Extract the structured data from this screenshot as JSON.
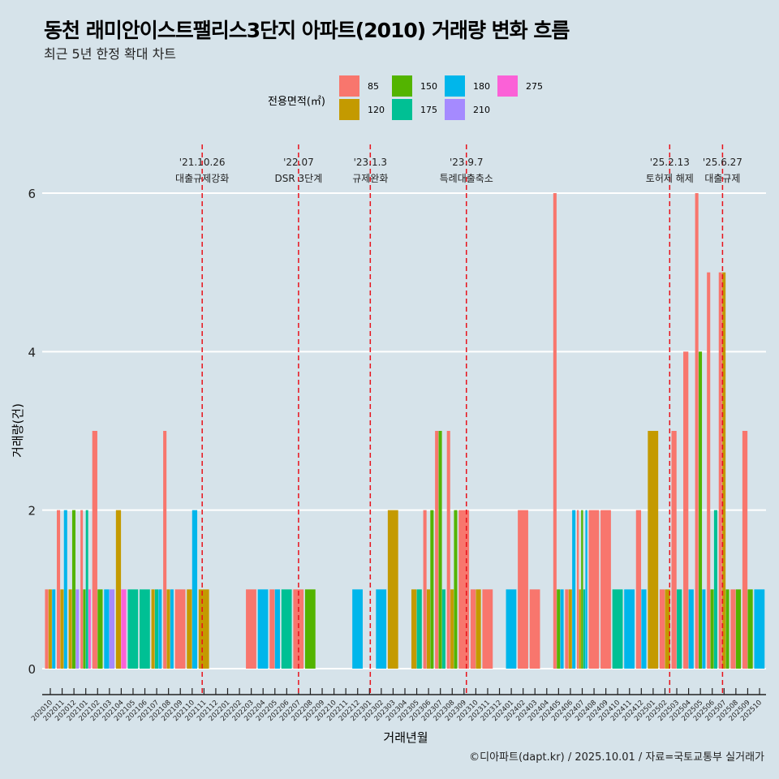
{
  "chart_data": {
    "type": "bar",
    "title": "동천 래미안이스트팰리스3단지 아파트(2010) 거래량 변화 흐름",
    "subtitle": "최근 5년 한정 확대 차트",
    "xlabel": "거래년월",
    "ylabel": "거래량(건)",
    "ylim": [
      0,
      6.3
    ],
    "yticks": [
      0,
      2,
      4,
      6
    ],
    "grid": true,
    "legend": {
      "title": "전용면적(㎡)",
      "position": "top",
      "entries": [
        {
          "label": "85",
          "color": "#F8766D"
        },
        {
          "label": "120",
          "color": "#C49A00"
        },
        {
          "label": "150",
          "color": "#53B400"
        },
        {
          "label": "175",
          "color": "#00C094"
        },
        {
          "label": "180",
          "color": "#00B6EB"
        },
        {
          "label": "210",
          "color": "#A58AFF"
        },
        {
          "label": "275",
          "color": "#FB61D7"
        }
      ]
    },
    "categories": [
      "202010",
      "202011",
      "202012",
      "202101",
      "202102",
      "202103",
      "202104",
      "202105",
      "202106",
      "202107",
      "202108",
      "202109",
      "202110",
      "202111",
      "202112",
      "202201",
      "202202",
      "202203",
      "202204",
      "202205",
      "202206",
      "202207",
      "202208",
      "202209",
      "202210",
      "202211",
      "202212",
      "202301",
      "202302",
      "202303",
      "202304",
      "202305",
      "202306",
      "202307",
      "202308",
      "202309",
      "202310",
      "202311",
      "202312",
      "202401",
      "202402",
      "202403",
      "202404",
      "202405",
      "202406",
      "202407",
      "202408",
      "202409",
      "202410",
      "202411",
      "202412",
      "202501",
      "202502",
      "202503",
      "202504",
      "202505",
      "202506",
      "202507",
      "202508",
      "202509",
      "202510"
    ],
    "data": {
      "202010": [
        [
          "85",
          1
        ],
        [
          "120",
          1
        ],
        [
          "180",
          1
        ]
      ],
      "202011": [
        [
          "85",
          2
        ],
        [
          "120",
          1
        ],
        [
          "180",
          2
        ]
      ],
      "202012": [
        [
          "120",
          1
        ],
        [
          "150",
          2
        ],
        [
          "210",
          1
        ]
      ],
      "202101": [
        [
          "85",
          2
        ],
        [
          "150",
          1
        ],
        [
          "175",
          2
        ],
        [
          "275",
          1
        ]
      ],
      "202102": [
        [
          "85",
          3
        ],
        [
          "150",
          1
        ]
      ],
      "202103": [
        [
          "180",
          1
        ],
        [
          "210",
          1
        ]
      ],
      "202104": [
        [
          "120",
          2
        ],
        [
          "275",
          1
        ]
      ],
      "202105": [
        [
          "175",
          1
        ]
      ],
      "202106": [
        [
          "175",
          1
        ]
      ],
      "202107": [
        [
          "120",
          1
        ],
        [
          "175",
          1
        ],
        [
          "180",
          1
        ]
      ],
      "202108": [
        [
          "85",
          3
        ],
        [
          "120",
          1
        ],
        [
          "180",
          1
        ]
      ],
      "202109": [
        [
          "85",
          1
        ]
      ],
      "202110": [
        [
          "120",
          1
        ],
        [
          "180",
          2
        ]
      ],
      "202111": [
        [
          "120",
          1
        ]
      ],
      "202203": [
        [
          "85",
          1
        ]
      ],
      "202204": [
        [
          "180",
          1
        ]
      ],
      "202205": [
        [
          "85",
          1
        ],
        [
          "180",
          1
        ]
      ],
      "202206": [
        [
          "175",
          1
        ]
      ],
      "202207": [
        [
          "85",
          1
        ]
      ],
      "202208": [
        [
          "150",
          1
        ]
      ],
      "202212": [
        [
          "180",
          1
        ]
      ],
      "202302": [
        [
          "180",
          1
        ]
      ],
      "202303": [
        [
          "120",
          2
        ]
      ],
      "202305": [
        [
          "120",
          1
        ],
        [
          "175",
          1
        ]
      ],
      "202306": [
        [
          "85",
          2
        ],
        [
          "120",
          1
        ],
        [
          "150",
          2
        ]
      ],
      "202307": [
        [
          "85",
          3
        ],
        [
          "150",
          3
        ],
        [
          "175",
          1
        ]
      ],
      "202308": [
        [
          "85",
          3
        ],
        [
          "120",
          1
        ],
        [
          "150",
          2
        ]
      ],
      "202309": [
        [
          "85",
          2
        ]
      ],
      "202310": [
        [
          "85",
          1
        ],
        [
          "120",
          1
        ]
      ],
      "202311": [
        [
          "85",
          1
        ]
      ],
      "202401": [
        [
          "180",
          1
        ]
      ],
      "202402": [
        [
          "85",
          2
        ]
      ],
      "202403": [
        [
          "85",
          1
        ]
      ],
      "202405": [
        [
          "85",
          6
        ],
        [
          "150",
          1
        ],
        [
          "180",
          1
        ]
      ],
      "202406": [
        [
          "85",
          1
        ],
        [
          "120",
          1
        ],
        [
          "180",
          2
        ]
      ],
      "202407": [
        [
          "85",
          2
        ],
        [
          "120",
          1
        ],
        [
          "150",
          2
        ],
        [
          "175",
          1
        ],
        [
          "180",
          2
        ]
      ],
      "202408": [
        [
          "85",
          2
        ]
      ],
      "202409": [
        [
          "85",
          2
        ]
      ],
      "202410": [
        [
          "175",
          1
        ]
      ],
      "202411": [
        [
          "180",
          1
        ]
      ],
      "202412": [
        [
          "85",
          2
        ],
        [
          "180",
          1
        ]
      ],
      "202501": [
        [
          "120",
          3
        ]
      ],
      "202502": [
        [
          "85",
          1
        ],
        [
          "120",
          1
        ]
      ],
      "202503": [
        [
          "85",
          3
        ],
        [
          "175",
          1
        ]
      ],
      "202504": [
        [
          "85",
          4
        ],
        [
          "180",
          1
        ]
      ],
      "202505": [
        [
          "85",
          6
        ],
        [
          "150",
          4
        ],
        [
          "180",
          1
        ]
      ],
      "202506": [
        [
          "85",
          5
        ],
        [
          "150",
          1
        ],
        [
          "175",
          2
        ]
      ],
      "202507": [
        [
          "85",
          5
        ],
        [
          "120",
          5
        ],
        [
          "150",
          1
        ]
      ],
      "202508": [
        [
          "85",
          1
        ],
        [
          "150",
          1
        ]
      ],
      "202509": [
        [
          "85",
          3
        ],
        [
          "150",
          1
        ]
      ],
      "202510": [
        [
          "180",
          1
        ]
      ]
    },
    "annotations": [
      {
        "date": "'21.10.26",
        "label": "대출규제강화",
        "month": "202110",
        "offset": 0.85
      },
      {
        "date": "'22.07",
        "label": "DSR 3단계",
        "month": "202207",
        "offset": 0.0
      },
      {
        "date": "'23.1.3",
        "label": "규제완화",
        "month": "202301",
        "offset": 0.07
      },
      {
        "date": "'23.9.7",
        "label": "특례대출축소",
        "month": "202309",
        "offset": 0.2
      },
      {
        "date": "'25.2.13",
        "label": "토허제 해제",
        "month": "202502",
        "offset": 0.4
      },
      {
        "date": "'25.6.27",
        "label": "대출규제",
        "month": "202506",
        "offset": 0.87
      }
    ]
  },
  "caption": "©디아파트(dapt.kr) / 2025.10.01 / 자료=국토교통부 실거래가"
}
